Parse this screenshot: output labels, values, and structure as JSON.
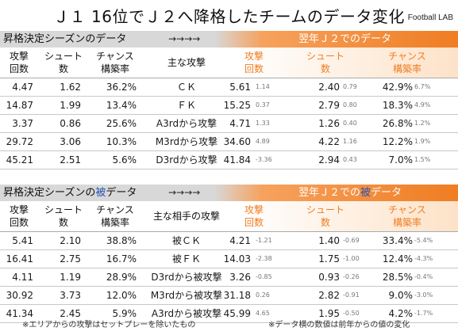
{
  "title": "Ｊ１ 16位でＪ２へ降格したチームのデータ変化",
  "brand": "Football LAB",
  "footnote_left": "※エリアからの攻撃はセットプレーを除いたもの",
  "footnote_right": "※データ横の数値は前年からの値の変化",
  "chart_data": [
    {
      "type": "table",
      "left_header": "昇格決定シーズンのデータ",
      "arrows": "→→→→",
      "right_header": "翌年Ｊ２でのデータ",
      "left_columns": [
        "攻撃\n回数",
        "シュート\n数",
        "チャンス\n構築率"
      ],
      "middle_column": "主な攻撃",
      "right_columns": [
        "攻撃\n回数",
        "シュート\n数",
        "チャンス\n構築率"
      ],
      "rows": [
        {
          "attacks": "4.47",
          "shots": "1.62",
          "chance": "36.2%",
          "label": "ＣＫ",
          "attacks2": "5.61",
          "attacks_delta": "1.14",
          "shots2": "2.40",
          "shots_delta": "0.79",
          "chance2": "42.9%",
          "chance_delta": "6.7%"
        },
        {
          "attacks": "14.87",
          "shots": "1.99",
          "chance": "13.4%",
          "label": "ＦＫ",
          "attacks2": "15.25",
          "attacks_delta": "0.37",
          "shots2": "2.79",
          "shots_delta": "0.80",
          "chance2": "18.3%",
          "chance_delta": "4.9%"
        },
        {
          "attacks": "3.37",
          "shots": "0.86",
          "chance": "25.6%",
          "label": "A3rdから攻撃",
          "attacks2": "4.71",
          "attacks_delta": "1.33",
          "shots2": "1.26",
          "shots_delta": "0.40",
          "chance2": "26.8%",
          "chance_delta": "1.2%"
        },
        {
          "attacks": "29.72",
          "shots": "3.06",
          "chance": "10.3%",
          "label": "M3rdから攻撃",
          "attacks2": "34.60",
          "attacks_delta": "4.89",
          "shots2": "4.22",
          "shots_delta": "1.16",
          "chance2": "12.2%",
          "chance_delta": "1.9%"
        },
        {
          "attacks": "45.21",
          "shots": "2.51",
          "chance": "5.6%",
          "label": "D3rdから攻撃",
          "attacks2": "41.84",
          "attacks_delta": "-3.36",
          "shots2": "2.94",
          "shots_delta": "0.43",
          "chance2": "7.0%",
          "chance_delta": "1.5%"
        }
      ]
    },
    {
      "type": "table",
      "left_header_pre": "昇格決定シーズンの",
      "left_header_hl": "被",
      "left_header_post": "データ",
      "arrows": "→→→→",
      "right_header_pre": "翌年Ｊ２での",
      "right_header_hl": "被",
      "right_header_post": "データ",
      "left_columns": [
        "攻撃\n回数",
        "シュート\n数",
        "チャンス\n構築率"
      ],
      "middle_column": "主な相手の攻撃",
      "right_columns": [
        "攻撃\n回数",
        "シュート\n数",
        "チャンス\n構築率"
      ],
      "rows": [
        {
          "attacks": "5.41",
          "shots": "2.10",
          "chance": "38.8%",
          "label": "被ＣＫ",
          "attacks2": "4.21",
          "attacks_delta": "-1.21",
          "shots2": "1.40",
          "shots_delta": "-0.69",
          "chance2": "33.4%",
          "chance_delta": "-5.4%"
        },
        {
          "attacks": "16.41",
          "shots": "2.75",
          "chance": "16.7%",
          "label": "被ＦＫ",
          "attacks2": "14.03",
          "attacks_delta": "-2.38",
          "shots2": "1.75",
          "shots_delta": "-1.00",
          "chance2": "12.4%",
          "chance_delta": "-4.3%"
        },
        {
          "attacks": "4.11",
          "shots": "1.19",
          "chance": "28.9%",
          "label": "D3rdから被攻撃",
          "attacks2": "3.26",
          "attacks_delta": "-0.85",
          "shots2": "0.93",
          "shots_delta": "-0.26",
          "chance2": "28.5%",
          "chance_delta": "-0.4%"
        },
        {
          "attacks": "30.92",
          "shots": "3.73",
          "chance": "12.0%",
          "label": "M3rdから被攻撃",
          "attacks2": "31.18",
          "attacks_delta": "0.26",
          "shots2": "2.82",
          "shots_delta": "-0.91",
          "chance2": "9.0%",
          "chance_delta": "-3.0%"
        },
        {
          "attacks": "41.34",
          "shots": "2.45",
          "chance": "5.9%",
          "label": "A3rdから被攻撃",
          "attacks2": "45.99",
          "attacks_delta": "4.65",
          "shots2": "1.95",
          "shots_delta": "-0.50",
          "chance2": "4.2%",
          "chance_delta": "-1.7%"
        }
      ]
    }
  ]
}
